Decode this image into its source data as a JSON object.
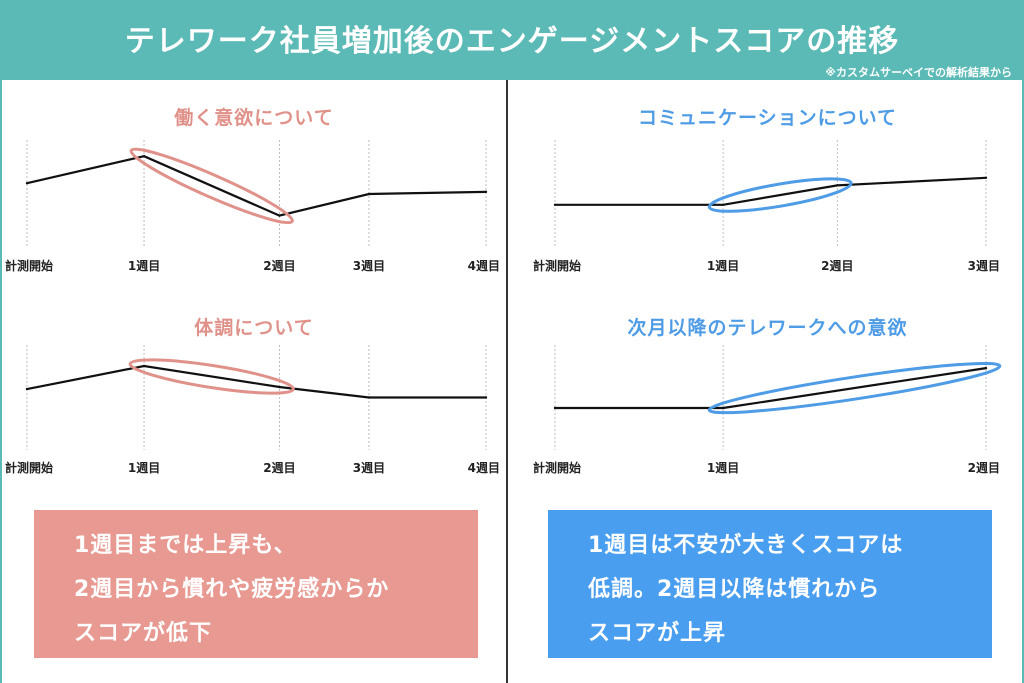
{
  "header": {
    "title": "テレワーク社員増加後のエンゲージメントスコアの推移",
    "note": "※カスタムサーベイでの解析結果から"
  },
  "colors": {
    "teal": "#5bbab5",
    "pink": "#e0928a",
    "blue": "#4e9be6",
    "pink_box": "#e89a92",
    "blue_box": "#4a9ef0"
  },
  "chart_data": [
    {
      "type": "line",
      "title": "働く意欲について",
      "categories": [
        "計測開始",
        "1週目",
        "2週目",
        "3週目",
        "4週目"
      ],
      "values": [
        0.6,
        0.85,
        0.3,
        0.5,
        0.52
      ],
      "ylim": [
        0,
        1
      ],
      "highlight": {
        "from": 1,
        "to": 2,
        "color": "pink"
      }
    },
    {
      "type": "line",
      "title": "体調について",
      "categories": [
        "計測開始",
        "1週目",
        "2週目",
        "3週目",
        "4週目"
      ],
      "values": [
        0.58,
        0.8,
        0.6,
        0.5,
        0.5
      ],
      "ylim": [
        0,
        1
      ],
      "highlight": {
        "from": 1,
        "to": 2,
        "color": "pink"
      }
    },
    {
      "type": "line",
      "title": "コミュニケーションについて",
      "categories": [
        "計測開始",
        "1週目",
        "2週目",
        "3週目"
      ],
      "values": [
        0.4,
        0.4,
        0.58,
        0.65
      ],
      "ylim": [
        0,
        1
      ],
      "highlight": {
        "from": 1,
        "to": 2,
        "color": "blue"
      }
    },
    {
      "type": "line",
      "title": "次月以降のテレワークへの意欲",
      "categories": [
        "計測開始",
        "1週目",
        "2週目"
      ],
      "values": [
        0.4,
        0.4,
        0.78
      ],
      "ylim": [
        0,
        1
      ],
      "highlight": {
        "from": 1,
        "to": 2,
        "color": "blue"
      }
    }
  ],
  "callouts": {
    "left": [
      "1週目までは上昇も、",
      "2週目から慣れや疲労感からか",
      "スコアが低下"
    ],
    "right": [
      "1週目は不安が大きくスコアは",
      "低調。2週目以降は慣れから",
      "スコアが上昇"
    ]
  }
}
